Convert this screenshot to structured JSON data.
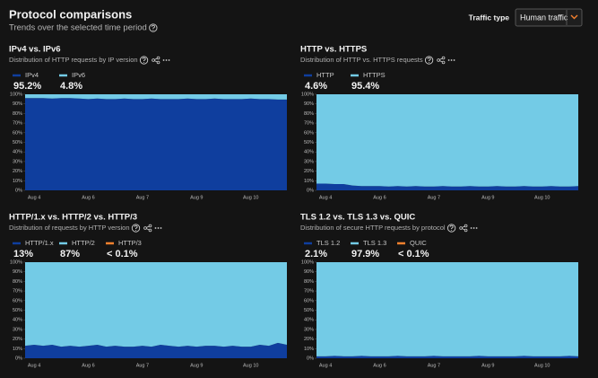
{
  "header": {
    "title": "Protocol comparisons",
    "subtitle": "Trends over the selected time period"
  },
  "controls": {
    "label": "Traffic type",
    "value": "Human traffic"
  },
  "chart_data": [
    {
      "type": "area",
      "title": "IPv4 vs. IPv6",
      "subtitle": "Distribution of HTTP requests by IP version",
      "categories": [
        null,
        "Aug 4",
        null,
        null,
        null,
        null,
        null,
        "Aug 6",
        null,
        null,
        null,
        null,
        null,
        "Aug 7",
        null,
        null,
        null,
        null,
        null,
        "Aug 9",
        null,
        null,
        null,
        null,
        null,
        "Aug 10",
        null,
        null,
        null,
        null
      ],
      "series": [
        {
          "name": "IPv4",
          "summary": "95.2%",
          "color": "#0f3e9e",
          "values": [
            96,
            96,
            96,
            95.5,
            96,
            96,
            95.5,
            95,
            95.5,
            95,
            95,
            95.5,
            95,
            95,
            95.5,
            95,
            95,
            95,
            95.5,
            95,
            95,
            95.5,
            95,
            95,
            95,
            95.5,
            95,
            95,
            94.5,
            94.5
          ]
        },
        {
          "name": "IPv6",
          "summary": "4.8%",
          "color": "#73cbe6",
          "values": [
            4,
            4,
            4,
            4.5,
            4,
            4,
            4.5,
            5,
            4.5,
            5,
            5,
            4.5,
            5,
            5,
            4.5,
            5,
            5,
            5,
            4.5,
            5,
            5,
            4.5,
            5,
            5,
            5,
            4.5,
            5,
            5,
            5.5,
            5.5
          ]
        }
      ],
      "ylim": [
        0,
        100
      ],
      "yticks": [
        {
          "value": 0,
          "label": "0%"
        },
        {
          "value": 10,
          "label": "10%"
        },
        {
          "value": 20,
          "label": "20%"
        },
        {
          "value": 30,
          "label": "30%"
        },
        {
          "value": 40,
          "label": "40%"
        },
        {
          "value": 50,
          "label": "50%"
        },
        {
          "value": 60,
          "label": "60%"
        },
        {
          "value": 70,
          "label": "70%"
        },
        {
          "value": 80,
          "label": "80%"
        },
        {
          "value": 90,
          "label": "90%"
        },
        {
          "value": 100,
          "label": "100%"
        }
      ]
    },
    {
      "type": "area",
      "title": "HTTP vs. HTTPS",
      "subtitle": "Distribution of HTTP vs. HTTPS requests",
      "categories": [
        null,
        "Aug 4",
        null,
        null,
        null,
        null,
        null,
        "Aug 6",
        null,
        null,
        null,
        null,
        null,
        "Aug 7",
        null,
        null,
        null,
        null,
        null,
        "Aug 9",
        null,
        null,
        null,
        null,
        null,
        "Aug 10",
        null,
        null,
        null,
        null
      ],
      "series": [
        {
          "name": "HTTP",
          "summary": "4.6%",
          "color": "#0f3e9e",
          "values": [
            7,
            7,
            6.5,
            6.5,
            5,
            4.5,
            4.5,
            4.5,
            4,
            4.5,
            4,
            4.5,
            4,
            4,
            4.5,
            4,
            4,
            4.5,
            4,
            4,
            4.5,
            4,
            4,
            4.5,
            4,
            4,
            4.5,
            4,
            4,
            4.5
          ]
        },
        {
          "name": "HTTPS",
          "summary": "95.4%",
          "color": "#73cbe6",
          "values": [
            93,
            93,
            93.5,
            93.5,
            95,
            95.5,
            95.5,
            95.5,
            96,
            95.5,
            96,
            95.5,
            96,
            96,
            95.5,
            96,
            96,
            95.5,
            96,
            96,
            95.5,
            96,
            96,
            95.5,
            96,
            96,
            95.5,
            96,
            96,
            95.5
          ]
        }
      ],
      "ylim": [
        0,
        100
      ],
      "yticks": [
        {
          "value": 0,
          "label": "0%"
        },
        {
          "value": 10,
          "label": "10%"
        },
        {
          "value": 20,
          "label": "20%"
        },
        {
          "value": 30,
          "label": "30%"
        },
        {
          "value": 40,
          "label": "40%"
        },
        {
          "value": 50,
          "label": "50%"
        },
        {
          "value": 60,
          "label": "60%"
        },
        {
          "value": 70,
          "label": "70%"
        },
        {
          "value": 80,
          "label": "80%"
        },
        {
          "value": 90,
          "label": "90%"
        },
        {
          "value": 100,
          "label": "100%"
        }
      ]
    },
    {
      "type": "area",
      "title": "HTTP/1.x vs. HTTP/2 vs. HTTP/3",
      "subtitle": "Distribution of requests by HTTP version",
      "categories": [
        null,
        "Aug 4",
        null,
        null,
        null,
        null,
        null,
        "Aug 6",
        null,
        null,
        null,
        null,
        null,
        "Aug 7",
        null,
        null,
        null,
        null,
        null,
        "Aug 9",
        null,
        null,
        null,
        null,
        null,
        "Aug 10",
        null,
        null,
        null,
        null
      ],
      "series": [
        {
          "name": "HTTP/1.x",
          "summary": "13%",
          "color": "#0f3e9e",
          "values": [
            13,
            14,
            13,
            14,
            12,
            13,
            12,
            13,
            14,
            12,
            13,
            12,
            12,
            13,
            12,
            14,
            13,
            12,
            13,
            12,
            13,
            13,
            12,
            13,
            12,
            12,
            14,
            13,
            16,
            14
          ]
        },
        {
          "name": "HTTP/2",
          "summary": "87%",
          "color": "#73cbe6",
          "values": [
            86.95,
            85.95,
            86.95,
            85.95,
            87.95,
            86.95,
            87.95,
            86.95,
            85.95,
            87.95,
            86.95,
            87.95,
            87.95,
            86.95,
            87.95,
            85.95,
            86.95,
            87.95,
            86.95,
            87.95,
            86.95,
            86.95,
            87.95,
            86.95,
            87.95,
            87.95,
            85.95,
            86.95,
            83.95,
            85.95
          ]
        },
        {
          "name": "HTTP/3",
          "summary": "< 0.1%",
          "color": "#f3802e",
          "values": [
            0.05,
            0.05,
            0.05,
            0.05,
            0.05,
            0.05,
            0.05,
            0.05,
            0.05,
            0.05,
            0.05,
            0.05,
            0.05,
            0.05,
            0.05,
            0.05,
            0.05,
            0.05,
            0.05,
            0.05,
            0.05,
            0.05,
            0.05,
            0.05,
            0.05,
            0.05,
            0.05,
            0.05,
            0.05,
            0.05
          ]
        }
      ],
      "ylim": [
        0,
        100
      ],
      "yticks": [
        {
          "value": 0,
          "label": "0%"
        },
        {
          "value": 10,
          "label": "10%"
        },
        {
          "value": 20,
          "label": "20%"
        },
        {
          "value": 30,
          "label": "30%"
        },
        {
          "value": 40,
          "label": "40%"
        },
        {
          "value": 50,
          "label": "50%"
        },
        {
          "value": 60,
          "label": "60%"
        },
        {
          "value": 70,
          "label": "70%"
        },
        {
          "value": 80,
          "label": "80%"
        },
        {
          "value": 90,
          "label": "90%"
        },
        {
          "value": 100,
          "label": "100%"
        }
      ]
    },
    {
      "type": "area",
      "title": "TLS 1.2 vs. TLS 1.3 vs. QUIC",
      "subtitle": "Distribution of secure HTTP requests by protocol",
      "categories": [
        null,
        "Aug 4",
        null,
        null,
        null,
        null,
        null,
        "Aug 6",
        null,
        null,
        null,
        null,
        null,
        "Aug 7",
        null,
        null,
        null,
        null,
        null,
        "Aug 9",
        null,
        null,
        null,
        null,
        null,
        "Aug 10",
        null,
        null,
        null,
        null
      ],
      "series": [
        {
          "name": "TLS 1.2",
          "summary": "2.1%",
          "color": "#0f3e9e",
          "values": [
            2,
            2,
            2.5,
            2,
            2,
            2.5,
            2,
            2,
            2,
            2.5,
            2,
            2,
            2,
            2.5,
            2,
            2,
            2,
            2,
            2.5,
            2,
            2,
            2,
            2,
            2.5,
            2,
            2,
            2,
            2,
            2.5,
            2
          ]
        },
        {
          "name": "TLS 1.3",
          "summary": "97.9%",
          "color": "#73cbe6",
          "values": [
            97.95,
            97.95,
            97.45,
            97.95,
            97.95,
            97.45,
            97.95,
            97.95,
            97.95,
            97.45,
            97.95,
            97.95,
            97.95,
            97.45,
            97.95,
            97.95,
            97.95,
            97.95,
            97.45,
            97.95,
            97.95,
            97.95,
            97.95,
            97.45,
            97.95,
            97.95,
            97.95,
            97.95,
            97.45,
            97.95
          ]
        },
        {
          "name": "QUIC",
          "summary": "< 0.1%",
          "color": "#f3802e",
          "values": [
            0.05,
            0.05,
            0.05,
            0.05,
            0.05,
            0.05,
            0.05,
            0.05,
            0.05,
            0.05,
            0.05,
            0.05,
            0.05,
            0.05,
            0.05,
            0.05,
            0.05,
            0.05,
            0.05,
            0.05,
            0.05,
            0.05,
            0.05,
            0.05,
            0.05,
            0.05,
            0.05,
            0.05,
            0.05,
            0.05
          ]
        }
      ],
      "ylim": [
        0,
        100
      ],
      "yticks": [
        {
          "value": 0,
          "label": "0%"
        },
        {
          "value": 10,
          "label": "10%"
        },
        {
          "value": 20,
          "label": "20%"
        },
        {
          "value": 30,
          "label": "30%"
        },
        {
          "value": 40,
          "label": "40%"
        },
        {
          "value": 50,
          "label": "50%"
        },
        {
          "value": 60,
          "label": "60%"
        },
        {
          "value": 70,
          "label": "70%"
        },
        {
          "value": 80,
          "label": "80%"
        },
        {
          "value": 90,
          "label": "90%"
        },
        {
          "value": 100,
          "label": "100%"
        }
      ]
    }
  ]
}
